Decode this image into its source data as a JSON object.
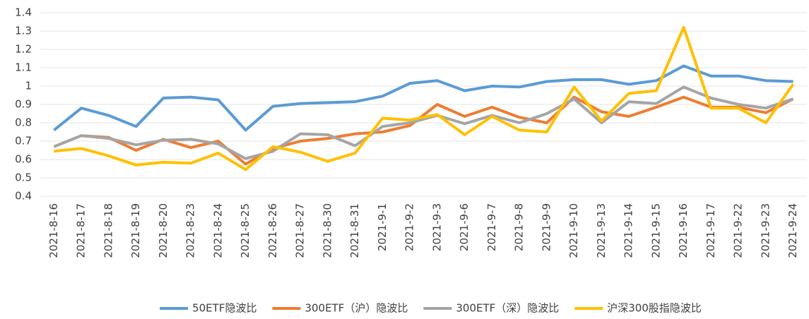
{
  "chart_data": {
    "type": "line",
    "categories": [
      "2021-8-16",
      "2021-8-17",
      "2021-8-18",
      "2021-8-19",
      "2021-8-20",
      "2021-8-23",
      "2021-8-24",
      "2021-8-25",
      "2021-8-26",
      "2021-8-27",
      "2021-8-30",
      "2021-8-31",
      "2021-9-1",
      "2021-9-2",
      "2021-9-3",
      "2021-9-6",
      "2021-9-7",
      "2021-9-8",
      "2021-9-9",
      "2021-9-10",
      "2021-9-13",
      "2021-9-14",
      "2021-9-15",
      "2021-9-16",
      "2021-9-17",
      "2021-9-22",
      "2021-9-23",
      "2021-9-24"
    ],
    "series": [
      {
        "name": "50ETF隐波比",
        "color": "#5b9bd5",
        "values": [
          0.76,
          0.88,
          0.84,
          0.78,
          0.935,
          0.94,
          0.925,
          0.76,
          0.89,
          0.905,
          0.91,
          0.915,
          0.945,
          1.015,
          1.03,
          0.975,
          1.0,
          0.995,
          1.025,
          1.035,
          1.035,
          1.01,
          1.03,
          1.11,
          1.055,
          1.055,
          1.03,
          1.025
        ]
      },
      {
        "name": "300ETF（沪）隐波比",
        "color": "#ed7d31",
        "values": [
          0.67,
          0.73,
          0.72,
          0.65,
          0.71,
          0.665,
          0.7,
          0.575,
          0.66,
          0.7,
          0.715,
          0.74,
          0.75,
          0.785,
          0.9,
          0.835,
          0.885,
          0.83,
          0.8,
          0.94,
          0.86,
          0.835,
          0.885,
          0.94,
          0.885,
          0.885,
          0.855,
          0.93
        ]
      },
      {
        "name": "300ETF（深）隐波比",
        "color": "#a5a5a5",
        "values": [
          0.67,
          0.73,
          0.715,
          0.68,
          0.705,
          0.71,
          0.685,
          0.605,
          0.645,
          0.74,
          0.735,
          0.675,
          0.78,
          0.8,
          0.84,
          0.795,
          0.84,
          0.8,
          0.85,
          0.93,
          0.8,
          0.915,
          0.905,
          0.995,
          0.935,
          0.9,
          0.88,
          0.93
        ]
      },
      {
        "name": "沪深300股指隐波比",
        "color": "#ffc000",
        "values": [
          0.645,
          0.66,
          0.62,
          0.57,
          0.585,
          0.58,
          0.635,
          0.545,
          0.67,
          0.64,
          0.59,
          0.635,
          0.825,
          0.815,
          0.845,
          0.735,
          0.835,
          0.76,
          0.75,
          0.995,
          0.81,
          0.96,
          0.975,
          1.32,
          0.88,
          0.88,
          0.8,
          1.01
        ]
      }
    ],
    "ylim": [
      0.4,
      1.4
    ],
    "yticks": [
      0.4,
      0.5,
      0.6,
      0.7,
      0.8,
      0.9,
      1,
      1.1,
      1.2,
      1.3,
      1.4
    ],
    "grid": true,
    "legend": "bottom"
  }
}
